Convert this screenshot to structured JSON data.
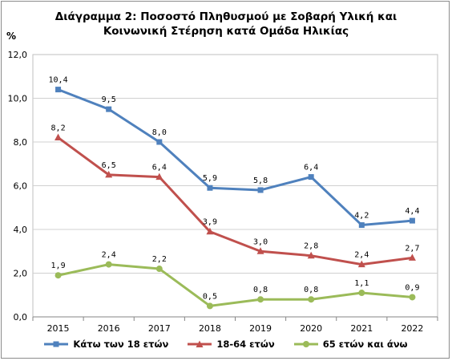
{
  "chart_data": {
    "type": "line",
    "title_line1": "Διάγραμμα 2: Ποσοστό Πληθυσμού με Σοβαρή Υλική και",
    "title_line2": "Κοινωνική Στέρηση κατά Ομάδα Ηλικίας",
    "ylabel": "%",
    "xlabel": "",
    "categories": [
      "2015",
      "2016",
      "2017",
      "2018",
      "2019",
      "2020",
      "2021",
      "2022"
    ],
    "ylim": [
      0,
      12
    ],
    "yticks": [
      "0,0",
      "2,0",
      "4,0",
      "6,0",
      "8,0",
      "10,0",
      "12,0"
    ],
    "grid": true,
    "legend_position": "bottom",
    "series": [
      {
        "name": "Κάτω των 18 ετών",
        "color": "#4f81bd",
        "marker": "square",
        "values": [
          10.4,
          9.5,
          8.0,
          5.9,
          5.8,
          6.4,
          4.2,
          4.4
        ],
        "labels": [
          "10,4",
          "9,5",
          "8,0",
          "5,9",
          "5,8",
          "6,4",
          "4,2",
          "4,4"
        ]
      },
      {
        "name": "18-64 ετών",
        "color": "#c0504d",
        "marker": "triangle",
        "values": [
          8.2,
          6.5,
          6.4,
          3.9,
          3.0,
          2.8,
          2.4,
          2.7
        ],
        "labels": [
          "8,2",
          "6,5",
          "6,4",
          "3,9",
          "3,0",
          "2,8",
          "2,4",
          "2,7"
        ]
      },
      {
        "name": "65 ετών και άνω",
        "color": "#9bbb59",
        "marker": "circle",
        "values": [
          1.9,
          2.4,
          2.2,
          0.5,
          0.8,
          0.8,
          1.1,
          0.9
        ],
        "labels": [
          "1,9",
          "2,4",
          "2,2",
          "0,5",
          "0,8",
          "0,8",
          "1,1",
          "0,9"
        ]
      }
    ]
  }
}
